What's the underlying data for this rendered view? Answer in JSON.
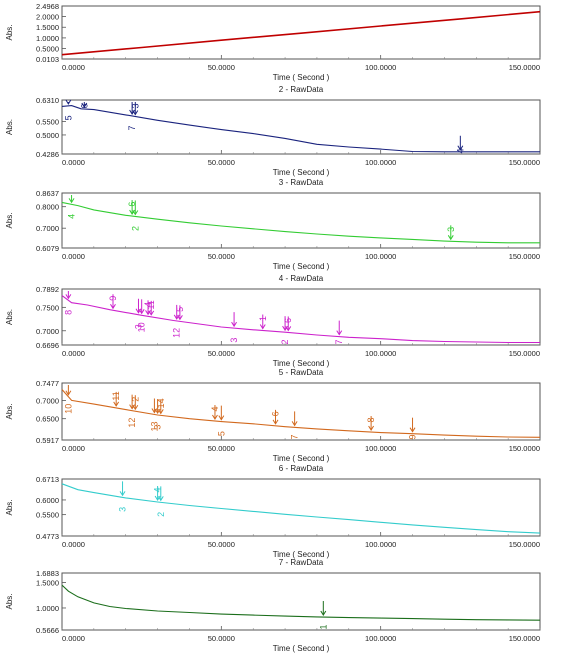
{
  "chart_data": [
    {
      "type": "line",
      "title": "",
      "xlabel": "Time ( Second )",
      "ylabel": "Abs.",
      "xlim": [
        0,
        150
      ],
      "ylim": [
        0.0103,
        2.4968
      ],
      "xticks": [
        "0.0000",
        "50.0000",
        "100.0000",
        "150.0000"
      ],
      "yticks": [
        "0.0103",
        "0.5000",
        "1.0000",
        "1.5000",
        "2.0000",
        "2.4968"
      ],
      "color": "#c00000",
      "series": [
        {
          "x": [
            0,
            25,
            50,
            75,
            100,
            125,
            150
          ],
          "y": [
            0.21,
            0.55,
            0.89,
            1.22,
            1.56,
            1.89,
            2.23
          ]
        }
      ],
      "annotations": []
    },
    {
      "type": "line",
      "title": "2 - RawData",
      "xlabel": "Time ( Second )",
      "ylabel": "Abs.",
      "xlim": [
        0,
        150
      ],
      "ylim": [
        0.4286,
        0.631
      ],
      "xticks": [
        "0.0000",
        "50.0000",
        "100.0000",
        "150.0000"
      ],
      "yticks": [
        "0.4286",
        "0.5000",
        "0.5500",
        "0.6310"
      ],
      "color": "#1a237e",
      "series": [
        {
          "x": [
            0,
            3,
            6,
            10,
            20,
            30,
            40,
            50,
            60,
            70,
            80,
            90,
            100,
            110,
            120,
            130,
            140,
            150
          ],
          "y": [
            0.607,
            0.61,
            0.598,
            0.595,
            0.575,
            0.555,
            0.537,
            0.52,
            0.505,
            0.487,
            0.465,
            0.455,
            0.447,
            0.438,
            0.437,
            0.437,
            0.437,
            0.437
          ]
        }
      ],
      "annotations": [
        {
          "label": "5",
          "x": 2
        },
        {
          "label": "6",
          "x": 7
        },
        {
          "label": "7",
          "x": 22
        },
        {
          "label": "3",
          "x": 23
        },
        {
          "label": "4",
          "x": 125
        }
      ]
    },
    {
      "type": "line",
      "title": "3 - RawData",
      "xlabel": "Time ( Second )",
      "ylabel": "Abs.",
      "xlim": [
        0,
        150
      ],
      "ylim": [
        0.6079,
        0.8637
      ],
      "xticks": [
        "0.0000",
        "50.0000",
        "100.0000",
        "150.0000"
      ],
      "yticks": [
        "0.6079",
        "0.7000",
        "0.8000",
        "0.8637"
      ],
      "color": "#33cc33",
      "series": [
        {
          "x": [
            0,
            5,
            10,
            20,
            30,
            40,
            50,
            60,
            70,
            80,
            90,
            100,
            110,
            120,
            130,
            140,
            150
          ],
          "y": [
            0.82,
            0.805,
            0.785,
            0.76,
            0.742,
            0.725,
            0.71,
            0.697,
            0.684,
            0.673,
            0.663,
            0.655,
            0.648,
            0.64,
            0.635,
            0.632,
            0.632
          ]
        }
      ],
      "annotations": [
        {
          "label": "4",
          "x": 3
        },
        {
          "label": "6",
          "x": 22
        },
        {
          "label": "2",
          "x": 23
        },
        {
          "label": "3",
          "x": 122
        }
      ]
    },
    {
      "type": "line",
      "title": "4 - RawData",
      "xlabel": "Time ( Second )",
      "ylabel": "Abs.",
      "xlim": [
        0,
        150
      ],
      "ylim": [
        0.6696,
        0.7892
      ],
      "xticks": [
        "0.0000",
        "50.0000",
        "100.0000",
        "150.0000"
      ],
      "yticks": [
        "0.6696",
        "0.7000",
        "0.7500",
        "0.7892"
      ],
      "color": "#cc22cc",
      "series": [
        {
          "x": [
            0,
            3,
            8,
            15,
            25,
            35,
            50,
            60,
            70,
            80,
            90,
            100,
            110,
            120,
            130,
            140,
            150
          ],
          "y": [
            0.775,
            0.76,
            0.755,
            0.745,
            0.733,
            0.722,
            0.708,
            0.702,
            0.697,
            0.691,
            0.686,
            0.683,
            0.679,
            0.677,
            0.676,
            0.675,
            0.675
          ]
        }
      ],
      "annotations": [
        {
          "label": "8",
          "x": 2
        },
        {
          "label": "9",
          "x": 16
        },
        {
          "label": "10",
          "x": 25
        },
        {
          "label": "11",
          "x": 28
        },
        {
          "label": "3",
          "x": 24
        },
        {
          "label": "4",
          "x": 27
        },
        {
          "label": "12",
          "x": 36
        },
        {
          "label": "5",
          "x": 37
        },
        {
          "label": "3",
          "x": 54
        },
        {
          "label": "1",
          "x": 63
        },
        {
          "label": "2",
          "x": 70
        },
        {
          "label": "6",
          "x": 71
        },
        {
          "label": "7",
          "x": 87
        }
      ]
    },
    {
      "type": "line",
      "title": "5 - RawData",
      "xlabel": "Time ( Second )",
      "ylabel": "Abs.",
      "xlim": [
        0,
        150
      ],
      "ylim": [
        0.5917,
        0.7477
      ],
      "xticks": [
        "0.0000",
        "50.0000",
        "100.0000",
        "150.0000"
      ],
      "yticks": [
        "0.5917",
        "0.6500",
        "0.7000",
        "0.7477"
      ],
      "color": "#d2691e",
      "series": [
        {
          "x": [
            0,
            3,
            10,
            20,
            30,
            40,
            50,
            60,
            70,
            80,
            90,
            100,
            110,
            120,
            130,
            140,
            150
          ],
          "y": [
            0.73,
            0.7,
            0.69,
            0.675,
            0.66,
            0.65,
            0.642,
            0.636,
            0.628,
            0.622,
            0.617,
            0.612,
            0.609,
            0.605,
            0.602,
            0.6,
            0.599
          ]
        }
      ],
      "annotations": [
        {
          "label": "10",
          "x": 2
        },
        {
          "label": "11",
          "x": 17
        },
        {
          "label": "12",
          "x": 22
        },
        {
          "label": "2",
          "x": 23
        },
        {
          "label": "13",
          "x": 29
        },
        {
          "label": "14",
          "x": 31
        },
        {
          "label": "3",
          "x": 30
        },
        {
          "label": "4",
          "x": 48
        },
        {
          "label": "5",
          "x": 50
        },
        {
          "label": "6",
          "x": 67
        },
        {
          "label": "7",
          "x": 73
        },
        {
          "label": "8",
          "x": 97
        },
        {
          "label": "9",
          "x": 110
        }
      ]
    },
    {
      "type": "line",
      "title": "6 - RawData",
      "xlabel": "Time ( Second )",
      "ylabel": "Abs.",
      "xlim": [
        0,
        150
      ],
      "ylim": [
        0.4773,
        0.6713
      ],
      "xticks": [
        "0.0000",
        "50.0000",
        "100.0000",
        "150.0000"
      ],
      "yticks": [
        "0.4773",
        "0.5500",
        "0.6000",
        "0.6713"
      ],
      "color": "#33cccc",
      "series": [
        {
          "x": [
            0,
            5,
            10,
            20,
            30,
            40,
            50,
            60,
            70,
            80,
            90,
            100,
            110,
            120,
            130,
            140,
            150
          ],
          "y": [
            0.655,
            0.635,
            0.625,
            0.607,
            0.593,
            0.581,
            0.571,
            0.561,
            0.551,
            0.542,
            0.533,
            0.524,
            0.515,
            0.507,
            0.499,
            0.492,
            0.487
          ]
        }
      ],
      "annotations": [
        {
          "label": "3",
          "x": 19
        },
        {
          "label": "4",
          "x": 30
        },
        {
          "label": "2",
          "x": 31
        }
      ]
    },
    {
      "type": "line",
      "title": "7 - RawData",
      "xlabel": "Time ( Second )",
      "ylabel": "Abs.",
      "xlim": [
        0,
        150
      ],
      "ylim": [
        0.5666,
        1.6883
      ],
      "xticks": [
        "0.0000",
        "50.0000",
        "100.0000",
        "150.0000"
      ],
      "yticks": [
        "0.5666",
        "1.0000",
        "1.5000",
        "1.6883"
      ],
      "color": "#1b6e1b",
      "series": [
        {
          "x": [
            0,
            2,
            5,
            10,
            15,
            20,
            30,
            40,
            50,
            60,
            70,
            80,
            90,
            100,
            110,
            120,
            130,
            140,
            150
          ],
          "y": [
            1.45,
            1.33,
            1.22,
            1.1,
            1.03,
            0.99,
            0.94,
            0.91,
            0.88,
            0.86,
            0.84,
            0.825,
            0.81,
            0.8,
            0.79,
            0.78,
            0.77,
            0.765,
            0.76
          ]
        }
      ],
      "annotations": [
        {
          "label": "1",
          "x": 82
        }
      ]
    }
  ]
}
